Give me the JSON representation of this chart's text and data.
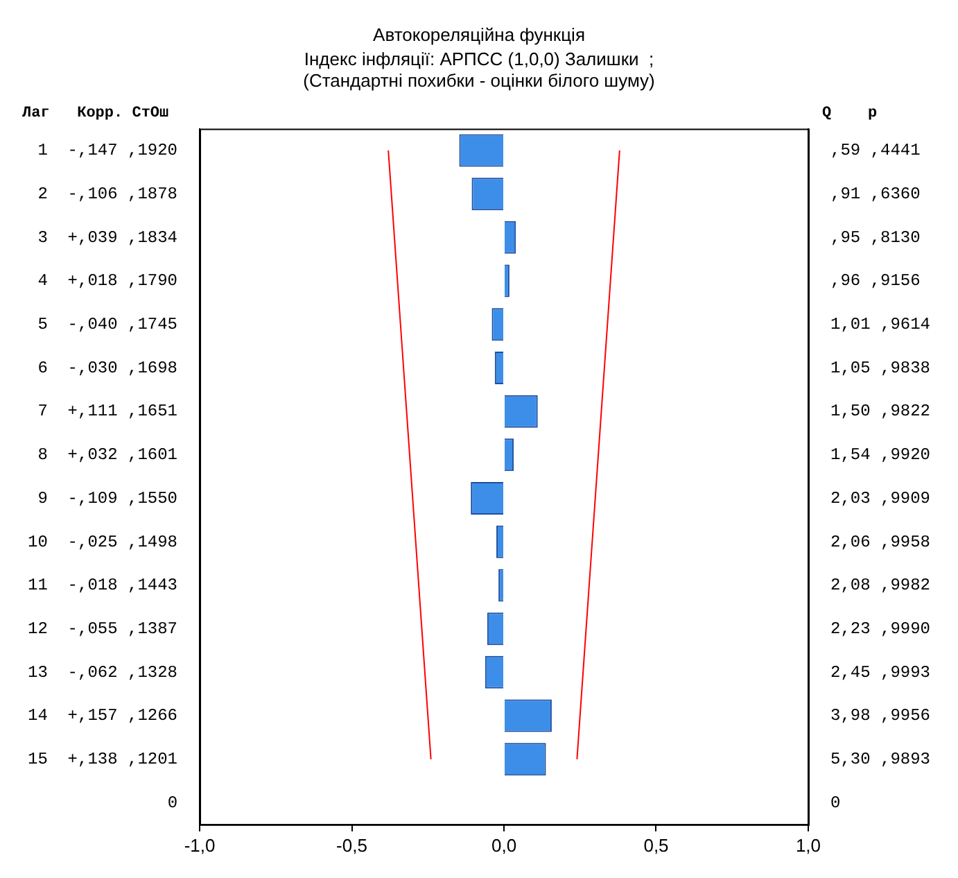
{
  "chart_data": {
    "type": "bar",
    "orientation": "horizontal",
    "title": "Автокореляційна функція",
    "subtitle": "Індекс інфляції: АРПСС (1,0,0) Залишки  ;\n(Стандартні похибки - оцінки білого шуму)",
    "categories": [
      "1  -,147 ,1920",
      "2  -,106 ,1878",
      "3  +,039 ,1834",
      "4  +,018 ,1790",
      "5  -,040 ,1745",
      "6  -,030 ,1698",
      "7  +,111 ,1651",
      "8  +,032 ,1601",
      "9  -,109 ,1550",
      "10  -,025 ,1498",
      "11  -,018 ,1443",
      "12  -,055 ,1387",
      "13  -,062 ,1328",
      "14  +,157 ,1266",
      "15  +,138 ,1201",
      "0"
    ],
    "y2_categories": [
      ",59 ,4441",
      ",91 ,6360",
      ",95 ,8130",
      ",96 ,9156",
      "1,01 ,9614",
      "1,05 ,9838",
      "1,50 ,9822",
      "1,54 ,9920",
      "2,03 ,9909",
      "2,06 ,9958",
      "2,08 ,9982",
      "2,23 ,9990",
      "2,45 ,9993",
      "3,98 ,9956",
      "5,30 ,9893",
      "0"
    ],
    "series": [
      {
        "color": "#3d8ee8",
        "values": [
          -0.147,
          -0.106,
          0.039,
          0.018,
          -0.04,
          -0.03,
          0.111,
          0.032,
          -0.109,
          -0.025,
          -0.018,
          -0.055,
          -0.062,
          0.157,
          0.138,
          null
        ]
      },
      {
        "type": "line",
        "color": "#ff0000",
        "values": [
          -0.38,
          -0.37,
          -0.36,
          -0.35,
          -0.34,
          -0.33,
          -0.32,
          -0.31,
          -0.3,
          -0.29,
          -0.28,
          -0.27,
          -0.26,
          -0.25,
          -0.24,
          null
        ]
      },
      {
        "type": "line",
        "color": "#ff0000",
        "values": [
          0.38,
          0.37,
          0.36,
          0.35,
          0.34,
          0.33,
          0.32,
          0.31,
          0.3,
          0.29,
          0.28,
          0.27,
          0.26,
          0.25,
          0.24,
          null
        ]
      }
    ],
    "xlim": [
      -1,
      1
    ],
    "xticks": [
      {
        "value": -1,
        "label": "-1,0"
      },
      {
        "value": -0.5,
        "label": "-0,5"
      },
      {
        "value": 0,
        "label": "0,0"
      },
      {
        "value": 0.5,
        "label": "0,5"
      },
      {
        "value": 1,
        "label": "1,0"
      }
    ],
    "annotations": [
      "Лаг   Корр. СтОш",
      "Q    p"
    ],
    "marker": "none",
    "grid": false,
    "legend": false
  }
}
